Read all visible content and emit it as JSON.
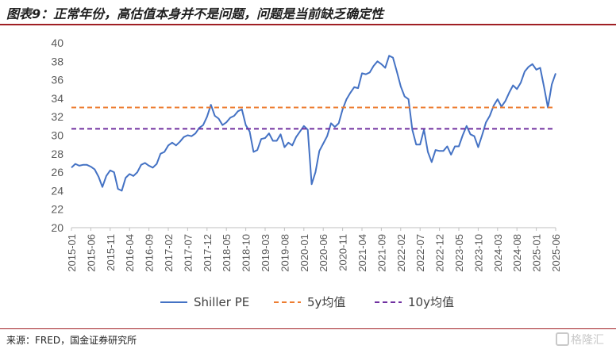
{
  "title": "图表9：正常年份，高估值本身并不是问题，问题是当前缺乏确定性",
  "source": "来源：FRED，国金证券研究所",
  "watermark": "格隆汇",
  "colors": {
    "shiller": "#4472C4",
    "y5": "#ED7D31",
    "y10": "#7030A0",
    "grid": "#d9d9d9",
    "axis": "#bfbfbf",
    "brand": "#a01f24"
  },
  "chart_data": {
    "type": "line",
    "title": "",
    "xlabel": "",
    "ylabel": "",
    "ylim": [
      20,
      40
    ],
    "yticks": [
      20,
      22,
      24,
      26,
      28,
      30,
      32,
      34,
      36,
      38,
      40
    ],
    "xtick_labels": [
      "2015-01",
      "2015-06",
      "2015-11",
      "2016-04",
      "2016-09",
      "2017-02",
      "2017-07",
      "2017-12",
      "2018-05",
      "2018-10",
      "2019-03",
      "2019-08",
      "2020-01",
      "2020-06",
      "2020-11",
      "2021-04",
      "2021-09",
      "2022-02",
      "2022-07",
      "2022-12",
      "2023-05",
      "2023-10",
      "2024-03",
      "2024-08",
      "2025-01",
      "2025-06"
    ],
    "grid": false,
    "legend_position": "bottom",
    "series": [
      {
        "name": "Shiller PE",
        "color": "#4472C4",
        "style": "solid",
        "values": [
          26.5,
          26.9,
          26.7,
          26.8,
          26.8,
          26.6,
          26.3,
          25.5,
          24.4,
          25.6,
          26.2,
          26.0,
          24.2,
          24.0,
          25.4,
          25.8,
          25.6,
          26.0,
          26.8,
          27.0,
          26.7,
          26.5,
          26.9,
          28.0,
          28.2,
          28.9,
          29.2,
          28.9,
          29.3,
          29.8,
          30.0,
          29.9,
          30.2,
          30.8,
          31.1,
          32.0,
          33.3,
          32.1,
          31.8,
          31.1,
          31.4,
          31.9,
          32.1,
          32.6,
          32.8,
          31.1,
          30.4,
          28.2,
          28.4,
          29.6,
          29.7,
          30.2,
          29.4,
          29.4,
          30.1,
          28.7,
          29.2,
          28.9,
          29.8,
          30.4,
          31.0,
          30.6,
          24.7,
          26.0,
          28.3,
          29.1,
          29.9,
          31.3,
          30.9,
          31.3,
          32.8,
          33.9,
          34.6,
          35.2,
          35.1,
          36.7,
          36.6,
          36.8,
          37.5,
          38.0,
          37.7,
          37.3,
          38.6,
          38.4,
          36.9,
          35.3,
          34.2,
          33.9,
          30.6,
          29.0,
          29.0,
          30.6,
          28.2,
          27.1,
          28.4,
          28.3,
          28.3,
          28.8,
          27.9,
          28.8,
          28.8,
          30.0,
          31.0,
          30.1,
          29.9,
          28.7,
          30.0,
          31.4,
          32.1,
          33.2,
          33.9,
          33.1,
          33.7,
          34.6,
          35.4,
          35.0,
          35.7,
          36.9,
          37.4,
          37.7,
          37.1,
          37.3,
          35.2,
          33.0,
          35.5,
          36.7
        ]
      },
      {
        "name": "5y均值",
        "color": "#ED7D31",
        "style": "dashed",
        "constant": 33.0
      },
      {
        "name": "10y均值",
        "color": "#7030A0",
        "style": "dashed",
        "constant": 30.7
      }
    ]
  }
}
